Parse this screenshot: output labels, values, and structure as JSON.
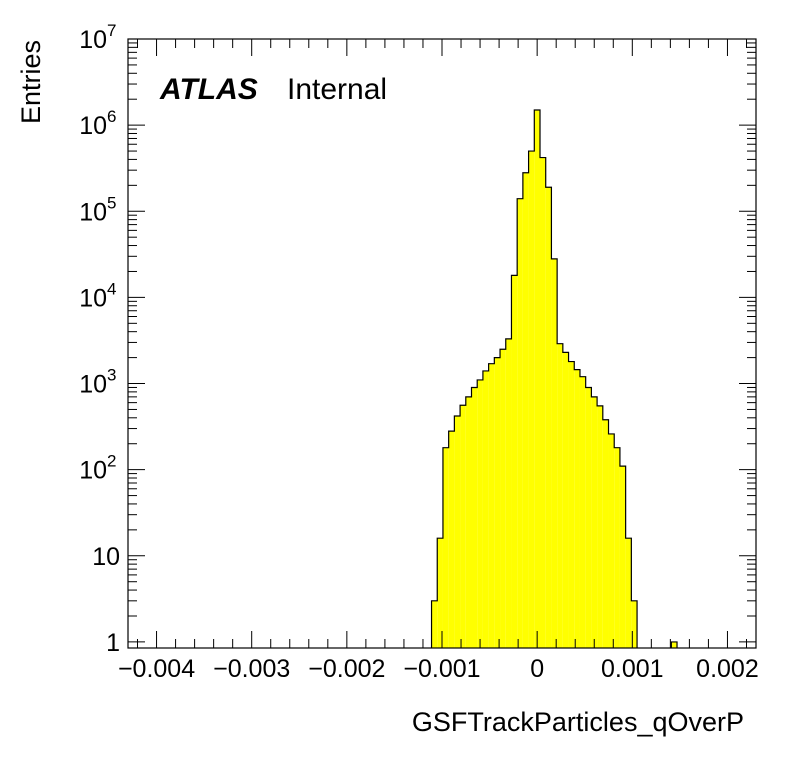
{
  "chart_data": {
    "type": "histogram",
    "label": {
      "brand": "ATLAS",
      "status": "Internal"
    },
    "xlabel": "GSFTrackParticles_qOverP",
    "ylabel": "Entries",
    "xlim": [
      -0.0043,
      0.0023
    ],
    "ylim": [
      0.85,
      10000000
    ],
    "y_scale": "log",
    "grid": false,
    "fill_color": "#ffff00",
    "line_color": "#000000",
    "bin_width": 6e-05,
    "x_ticks": [
      {
        "value": -0.004,
        "label": "−0.004"
      },
      {
        "value": -0.003,
        "label": "−0.003"
      },
      {
        "value": -0.002,
        "label": "−0.002"
      },
      {
        "value": -0.001,
        "label": "−0.001"
      },
      {
        "value": 0,
        "label": "0"
      },
      {
        "value": 0.001,
        "label": "0.001"
      },
      {
        "value": 0.002,
        "label": "0.002"
      }
    ],
    "y_ticks": [
      {
        "value": 1,
        "label": "1",
        "sup": ""
      },
      {
        "value": 10,
        "label": "10",
        "sup": ""
      },
      {
        "value": 100,
        "label": "10",
        "sup": "2"
      },
      {
        "value": 1000,
        "label": "10",
        "sup": "3"
      },
      {
        "value": 10000,
        "label": "10",
        "sup": "4"
      },
      {
        "value": 100000,
        "label": "10",
        "sup": "5"
      },
      {
        "value": 1000000,
        "label": "10",
        "sup": "6"
      },
      {
        "value": 10000000,
        "label": "10",
        "sup": "7"
      }
    ],
    "bins": [
      {
        "x0": -0.00111,
        "x1": -0.00105,
        "y": 3
      },
      {
        "x0": -0.00105,
        "x1": -0.00099,
        "y": 16
      },
      {
        "x0": -0.00099,
        "x1": -0.00093,
        "y": 180
      },
      {
        "x0": -0.00093,
        "x1": -0.00087,
        "y": 280
      },
      {
        "x0": -0.00087,
        "x1": -0.00081,
        "y": 420
      },
      {
        "x0": -0.00081,
        "x1": -0.00075,
        "y": 560
      },
      {
        "x0": -0.00075,
        "x1": -0.00069,
        "y": 700
      },
      {
        "x0": -0.00069,
        "x1": -0.00063,
        "y": 900
      },
      {
        "x0": -0.00063,
        "x1": -0.00057,
        "y": 1100
      },
      {
        "x0": -0.00057,
        "x1": -0.00051,
        "y": 1400
      },
      {
        "x0": -0.00051,
        "x1": -0.00045,
        "y": 1700
      },
      {
        "x0": -0.00045,
        "x1": -0.00039,
        "y": 2000
      },
      {
        "x0": -0.00039,
        "x1": -0.00033,
        "y": 2500
      },
      {
        "x0": -0.00033,
        "x1": -0.00027,
        "y": 3300
      },
      {
        "x0": -0.00027,
        "x1": -0.00021,
        "y": 18000
      },
      {
        "x0": -0.00021,
        "x1": -0.00015,
        "y": 140000
      },
      {
        "x0": -0.00015,
        "x1": -9e-05,
        "y": 280000
      },
      {
        "x0": -9e-05,
        "x1": -3e-05,
        "y": 500000
      },
      {
        "x0": -3e-05,
        "x1": 3e-05,
        "y": 1500000
      },
      {
        "x0": 3e-05,
        "x1": 9e-05,
        "y": 420000
      },
      {
        "x0": 9e-05,
        "x1": 0.00015,
        "y": 190000
      },
      {
        "x0": 0.00015,
        "x1": 0.00021,
        "y": 28000
      },
      {
        "x0": 0.00021,
        "x1": 0.00027,
        "y": 2900
      },
      {
        "x0": 0.00027,
        "x1": 0.00033,
        "y": 2300
      },
      {
        "x0": 0.00033,
        "x1": 0.00039,
        "y": 1800
      },
      {
        "x0": 0.00039,
        "x1": 0.00045,
        "y": 1450
      },
      {
        "x0": 0.00045,
        "x1": 0.00051,
        "y": 1200
      },
      {
        "x0": 0.00051,
        "x1": 0.00057,
        "y": 900
      },
      {
        "x0": 0.00057,
        "x1": 0.00063,
        "y": 700
      },
      {
        "x0": 0.00063,
        "x1": 0.00069,
        "y": 550
      },
      {
        "x0": 0.00069,
        "x1": 0.00075,
        "y": 380
      },
      {
        "x0": 0.00075,
        "x1": 0.00081,
        "y": 260
      },
      {
        "x0": 0.00081,
        "x1": 0.00087,
        "y": 180
      },
      {
        "x0": 0.00087,
        "x1": 0.00093,
        "y": 110
      },
      {
        "x0": 0.00093,
        "x1": 0.00099,
        "y": 16
      },
      {
        "x0": 0.00099,
        "x1": 0.00105,
        "y": 3
      },
      {
        "x0": 0.00141,
        "x1": 0.00147,
        "y": 1
      }
    ]
  }
}
